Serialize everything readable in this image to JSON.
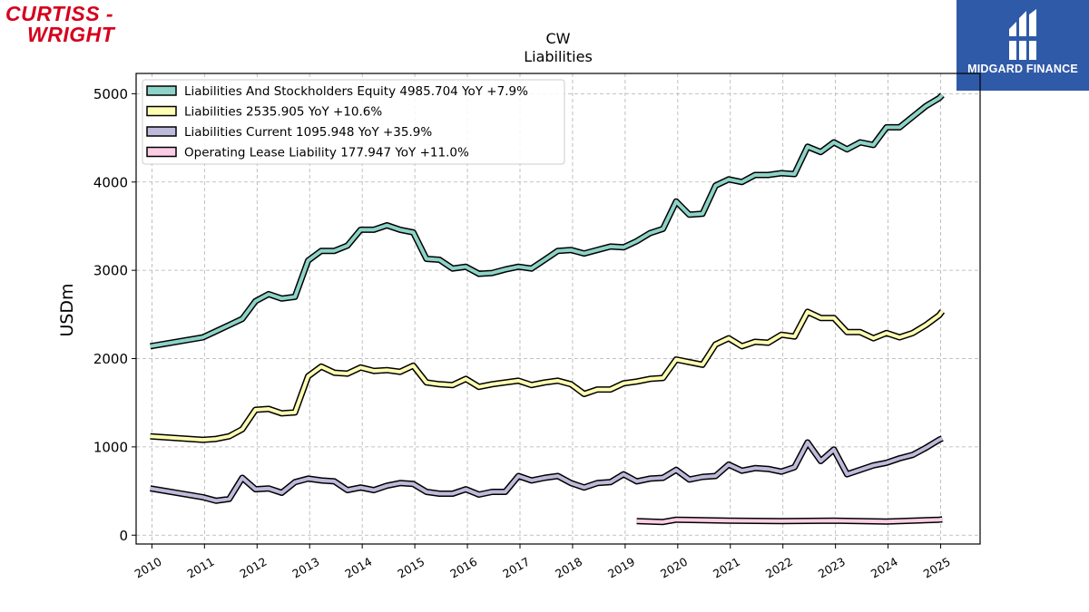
{
  "logos": {
    "left": {
      "line1": "CURTISS -",
      "line2": "WRIGHT",
      "color": "#d6001c"
    },
    "right": {
      "text": "MIDGARD FINANCE",
      "background": "#2f5aa8"
    }
  },
  "chart_data": {
    "type": "line",
    "title": "CW",
    "subtitle": "Liabilities",
    "ylabel": "USDm",
    "xlabel": "",
    "xlim": [
      2009.7,
      2025.75
    ],
    "ylim": [
      -100,
      5230
    ],
    "yticks": [
      0,
      1000,
      2000,
      3000,
      4000,
      5000
    ],
    "xticks": [
      2010,
      2011,
      2012,
      2013,
      2014,
      2015,
      2016,
      2017,
      2018,
      2019,
      2020,
      2021,
      2022,
      2023,
      2024,
      2025
    ],
    "grid": true,
    "legend_position": "top-left",
    "series": [
      {
        "name": "Liabilities And Stockholders Equity",
        "legend": "Liabilities And Stockholders Equity  4985.704 YoY +7.9%",
        "color": "#8dd3c7",
        "x": [
          2009.97,
          2010.97,
          2011.22,
          2011.47,
          2011.72,
          2011.97,
          2012.22,
          2012.47,
          2012.72,
          2012.97,
          2013.22,
          2013.47,
          2013.72,
          2013.97,
          2014.22,
          2014.47,
          2014.72,
          2014.97,
          2015.22,
          2015.47,
          2015.72,
          2015.97,
          2016.22,
          2016.47,
          2016.72,
          2016.97,
          2017.22,
          2017.47,
          2017.72,
          2017.97,
          2018.22,
          2018.47,
          2018.72,
          2018.97,
          2019.22,
          2019.47,
          2019.72,
          2019.97,
          2020.22,
          2020.47,
          2020.72,
          2020.97,
          2021.22,
          2021.47,
          2021.72,
          2021.97,
          2022.22,
          2022.47,
          2022.72,
          2022.97,
          2023.22,
          2023.47,
          2023.72,
          2023.97,
          2024.22,
          2024.47,
          2024.72,
          2024.97,
          2025.03
        ],
        "y": [
          2140,
          2240,
          2310,
          2380,
          2450,
          2650,
          2730,
          2680,
          2700,
          3110,
          3220,
          3220,
          3280,
          3460,
          3460,
          3510,
          3460,
          3430,
          3130,
          3120,
          3020,
          3040,
          2960,
          2970,
          3010,
          3040,
          3020,
          3120,
          3220,
          3230,
          3190,
          3230,
          3270,
          3260,
          3330,
          3420,
          3470,
          3780,
          3630,
          3640,
          3960,
          4030,
          4000,
          4080,
          4080,
          4100,
          4090,
          4400,
          4340,
          4450,
          4370,
          4450,
          4420,
          4620,
          4620,
          4740,
          4860,
          4950,
          4986
        ]
      },
      {
        "name": "Liabilities",
        "legend": "Liabilities  2535.905 YoY +10.6%",
        "color": "#ffffb3",
        "x": [
          2009.97,
          2010.97,
          2011.22,
          2011.47,
          2011.72,
          2011.97,
          2012.22,
          2012.47,
          2012.72,
          2012.97,
          2013.22,
          2013.47,
          2013.72,
          2013.97,
          2014.22,
          2014.47,
          2014.72,
          2014.97,
          2015.22,
          2015.47,
          2015.72,
          2015.97,
          2016.22,
          2016.47,
          2016.72,
          2016.97,
          2017.22,
          2017.47,
          2017.72,
          2017.97,
          2018.22,
          2018.47,
          2018.72,
          2018.97,
          2019.22,
          2019.47,
          2019.72,
          2019.97,
          2020.22,
          2020.47,
          2020.72,
          2020.97,
          2021.22,
          2021.47,
          2021.72,
          2021.97,
          2022.22,
          2022.47,
          2022.72,
          2022.97,
          2023.22,
          2023.47,
          2023.72,
          2023.97,
          2024.22,
          2024.47,
          2024.72,
          2024.97,
          2025.03
        ],
        "y": [
          1120,
          1080,
          1090,
          1120,
          1200,
          1420,
          1430,
          1380,
          1390,
          1800,
          1910,
          1840,
          1830,
          1900,
          1860,
          1870,
          1850,
          1920,
          1730,
          1710,
          1700,
          1770,
          1680,
          1710,
          1730,
          1750,
          1700,
          1730,
          1750,
          1710,
          1600,
          1650,
          1650,
          1720,
          1740,
          1770,
          1780,
          1990,
          1960,
          1930,
          2160,
          2230,
          2140,
          2190,
          2180,
          2270,
          2250,
          2530,
          2460,
          2460,
          2300,
          2300,
          2230,
          2290,
          2240,
          2290,
          2380,
          2490,
          2536
        ]
      },
      {
        "name": "Liabilities Current",
        "legend": "Liabilities Current  1095.948 YoY +35.9%",
        "color": "#bebada",
        "x": [
          2009.97,
          2010.97,
          2011.22,
          2011.47,
          2011.72,
          2011.97,
          2012.22,
          2012.47,
          2012.72,
          2012.97,
          2013.22,
          2013.47,
          2013.72,
          2013.97,
          2014.22,
          2014.47,
          2014.72,
          2014.97,
          2015.22,
          2015.47,
          2015.72,
          2015.97,
          2016.22,
          2016.47,
          2016.72,
          2016.97,
          2017.22,
          2017.47,
          2017.72,
          2017.97,
          2018.22,
          2018.47,
          2018.72,
          2018.97,
          2019.22,
          2019.47,
          2019.72,
          2019.97,
          2020.22,
          2020.47,
          2020.72,
          2020.97,
          2021.22,
          2021.47,
          2021.72,
          2021.97,
          2022.22,
          2022.47,
          2022.72,
          2022.97,
          2023.22,
          2023.47,
          2023.72,
          2023.97,
          2024.22,
          2024.47,
          2024.72,
          2024.97,
          2025.03
        ],
        "y": [
          530,
          430,
          390,
          410,
          650,
          520,
          530,
          480,
          600,
          640,
          620,
          610,
          510,
          540,
          510,
          560,
          590,
          580,
          490,
          470,
          470,
          520,
          460,
          490,
          490,
          670,
          620,
          650,
          670,
          590,
          540,
          590,
          600,
          690,
          610,
          640,
          650,
          740,
          630,
          660,
          670,
          800,
          730,
          760,
          750,
          720,
          770,
          1050,
          840,
          970,
          690,
          740,
          790,
          820,
          870,
          910,
          990,
          1080,
          1096
        ]
      },
      {
        "name": "Operating Lease Liability",
        "legend": "Operating Lease Liability  177.947 YoY +11.0%",
        "color": "#fccde5",
        "x": [
          2019.22,
          2019.72,
          2019.97,
          2020.97,
          2021.97,
          2022.97,
          2023.97,
          2024.97,
          2025.03
        ],
        "y": [
          160,
          150,
          175,
          165,
          160,
          165,
          155,
          175,
          178
        ]
      }
    ]
  }
}
